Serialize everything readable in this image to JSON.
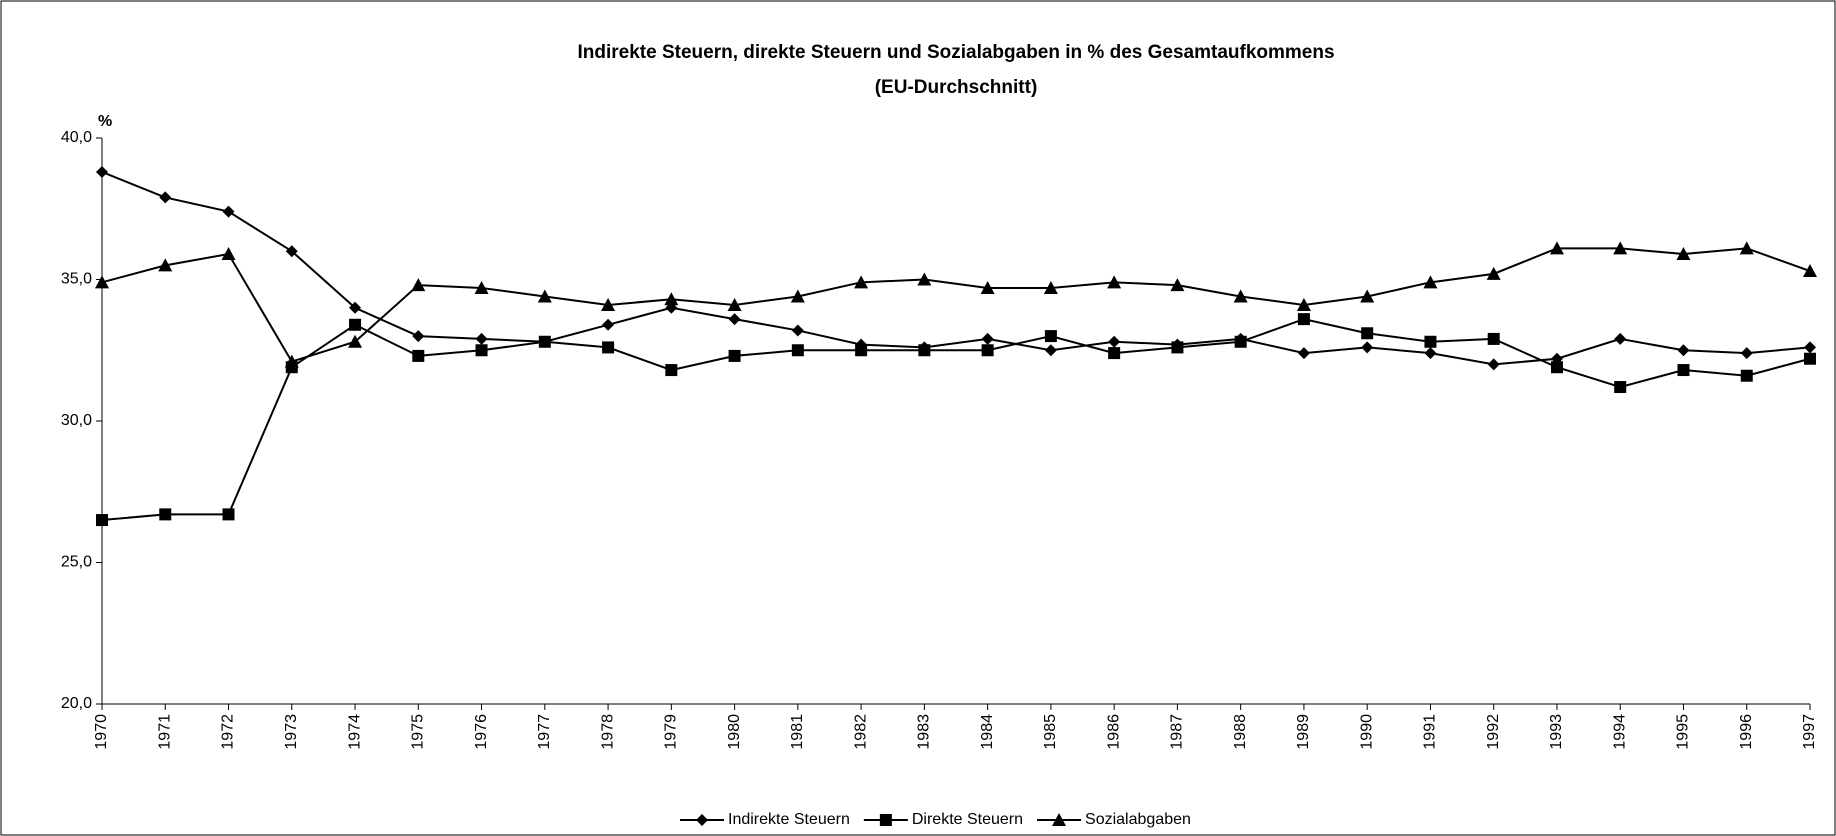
{
  "chart_data": {
    "type": "line",
    "title": "Indirekte Steuern, direkte Steuern und Sozialabgaben in % des Gesamtaufkommens",
    "subtitle": "(EU-Durchschnitt)",
    "y_label": "%",
    "categories": [
      "1970",
      "1971",
      "1972",
      "1973",
      "1974",
      "1975",
      "1976",
      "1977",
      "1978",
      "1979",
      "1980",
      "1981",
      "1982",
      "1983",
      "1984",
      "1985",
      "1986",
      "1987",
      "1988",
      "1989",
      "1990",
      "1991",
      "1992",
      "1993",
      "1994",
      "1995",
      "1996",
      "1997"
    ],
    "series": [
      {
        "name": "Indirekte Steuern",
        "color": "#000000",
        "marker": "diamond",
        "values": [
          38.8,
          37.9,
          37.4,
          36.0,
          34.0,
          33.0,
          32.9,
          32.8,
          33.4,
          34.0,
          33.6,
          33.2,
          32.7,
          32.6,
          32.9,
          32.5,
          32.8,
          32.7,
          32.9,
          32.4,
          32.6,
          32.4,
          32.0,
          32.2,
          32.9,
          32.5,
          32.4,
          32.6
        ]
      },
      {
        "name": "Direkte Steuern",
        "color": "#000000",
        "marker": "square",
        "values": [
          26.5,
          26.7,
          26.7,
          31.9,
          33.4,
          32.3,
          32.5,
          32.8,
          32.6,
          31.8,
          32.3,
          32.5,
          32.5,
          32.5,
          32.5,
          33.0,
          32.4,
          32.6,
          32.8,
          33.6,
          33.1,
          32.8,
          32.9,
          31.9,
          31.2,
          31.8,
          31.6,
          32.2
        ]
      },
      {
        "name": "Sozialabgaben",
        "color": "#000000",
        "marker": "triangle",
        "values": [
          34.9,
          35.5,
          35.9,
          32.1,
          32.8,
          34.8,
          34.7,
          34.4,
          34.1,
          34.3,
          34.1,
          34.4,
          34.9,
          35.0,
          34.7,
          34.7,
          34.9,
          34.8,
          34.4,
          34.1,
          34.4,
          34.9,
          35.2,
          36.1,
          36.1,
          35.9,
          36.1,
          35.3
        ]
      }
    ],
    "ylim": [
      20,
      40
    ],
    "yticks": [
      {
        "value": 20,
        "label": "20,0"
      },
      {
        "value": 25,
        "label": "25,0"
      },
      {
        "value": 30,
        "label": "30,0"
      },
      {
        "value": 35,
        "label": "35,0"
      },
      {
        "value": 40,
        "label": "40,0"
      }
    ],
    "grid": false,
    "legend": "bottom"
  }
}
